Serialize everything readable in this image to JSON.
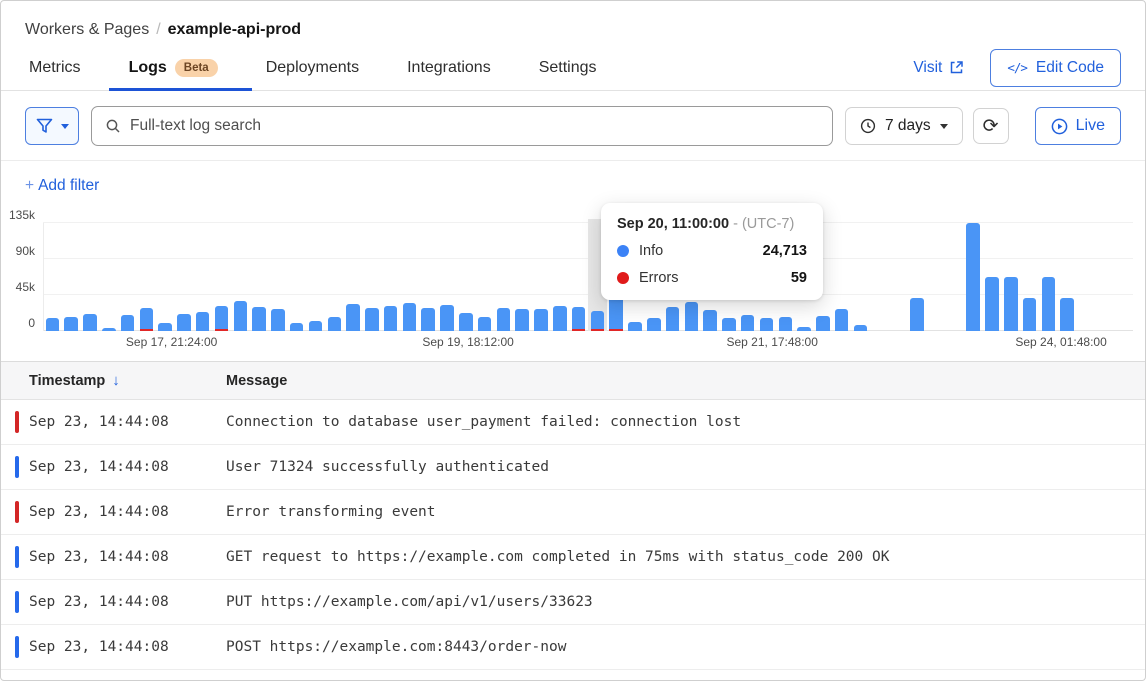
{
  "breadcrumb": {
    "section": "Workers & Pages",
    "separator": "/",
    "page": "example-api-prod"
  },
  "tabs": {
    "items": [
      {
        "label": "Metrics",
        "active": false
      },
      {
        "label": "Logs",
        "badge": "Beta",
        "active": true
      },
      {
        "label": "Deployments",
        "active": false
      },
      {
        "label": "Integrations",
        "active": false
      },
      {
        "label": "Settings",
        "active": false
      }
    ],
    "visit_label": "Visit",
    "edit_code_label": "Edit Code",
    "edit_code_icon": "</>"
  },
  "toolbar": {
    "search_placeholder": "Full-text log search",
    "time_range_label": "7 days",
    "refresh_icon": "⟳",
    "live_label": "Live"
  },
  "filters": {
    "add_filter_label": "Add filter",
    "plus": "+"
  },
  "chart_data": {
    "type": "bar",
    "stacked": true,
    "title": "",
    "xlabel": "",
    "ylabel": "",
    "ylim": [
      0,
      135000
    ],
    "grid": true,
    "ytick_labels": [
      "135k",
      "90k",
      "45k",
      "0"
    ],
    "x_axis_labels": [
      {
        "label": "Sep 17, 21:24:00",
        "position": 0.118
      },
      {
        "label": "Sep 19, 18:12:00",
        "position": 0.39
      },
      {
        "label": "Sep 21, 17:48:00",
        "position": 0.669
      },
      {
        "label": "Sep 24, 01:48:00",
        "position": 0.934
      }
    ],
    "series": [
      {
        "name": "Info",
        "color": "#4a95f6"
      },
      {
        "name": "Errors",
        "color": "#e12727"
      }
    ],
    "info_values": [
      16000,
      17000,
      21000,
      4000,
      20000,
      27000,
      10000,
      21000,
      24000,
      30000,
      38000,
      30000,
      28000,
      10000,
      13000,
      18000,
      34000,
      29000,
      31000,
      35000,
      29000,
      33000,
      23000,
      17000,
      29000,
      27000,
      27000,
      31000,
      29000,
      24713,
      50000,
      11000,
      16000,
      30000,
      36000,
      26000,
      16000,
      20000,
      16000,
      18000,
      5000,
      19000,
      27000,
      7000,
      0,
      0,
      41000,
      0,
      0,
      135000,
      68000,
      68000,
      41000,
      68000,
      41000,
      0,
      0,
      0
    ],
    "error_values": [
      0,
      0,
      0,
      0,
      0,
      1500,
      0,
      0,
      0,
      1800,
      0,
      0,
      0,
      0,
      0,
      0,
      0,
      0,
      0,
      0,
      0,
      0,
      0,
      0,
      0,
      0,
      0,
      0,
      1500,
      59,
      2500,
      0,
      0,
      0,
      0,
      0,
      0,
      0,
      0,
      0,
      0,
      0,
      0,
      0,
      0,
      0,
      0,
      0,
      0,
      0,
      0,
      0,
      0,
      0,
      0,
      0,
      0,
      0
    ],
    "hover_index": 29,
    "tooltip": {
      "title": "Sep 20, 11:00:00",
      "separator": "-",
      "timezone": "(UTC-7)",
      "rows": [
        {
          "label": "Info",
          "value": "24,713",
          "color": "#3b82f6"
        },
        {
          "label": "Errors",
          "value": "59",
          "color": "#e01a1a"
        }
      ]
    }
  },
  "table": {
    "columns": {
      "timestamp": "Timestamp",
      "message": "Message"
    },
    "sort_icon": "↓",
    "rows": [
      {
        "severity": "error",
        "timestamp": "Sep 23, 14:44:08",
        "message": "Connection to database user_payment failed: connection lost"
      },
      {
        "severity": "info",
        "timestamp": "Sep 23, 14:44:08",
        "message": "User 71324 successfully authenticated"
      },
      {
        "severity": "error",
        "timestamp": "Sep 23, 14:44:08",
        "message": "Error transforming event"
      },
      {
        "severity": "info",
        "timestamp": "Sep 23, 14:44:08",
        "message": "GET request to https://example.com completed in 75ms with status_code 200 OK"
      },
      {
        "severity": "info",
        "timestamp": "Sep 23, 14:44:08",
        "message": "PUT https://example.com/api/v1/users/33623"
      },
      {
        "severity": "info",
        "timestamp": "Sep 23, 14:44:08",
        "message": "POST https://example.com:8443/order-now"
      }
    ]
  }
}
